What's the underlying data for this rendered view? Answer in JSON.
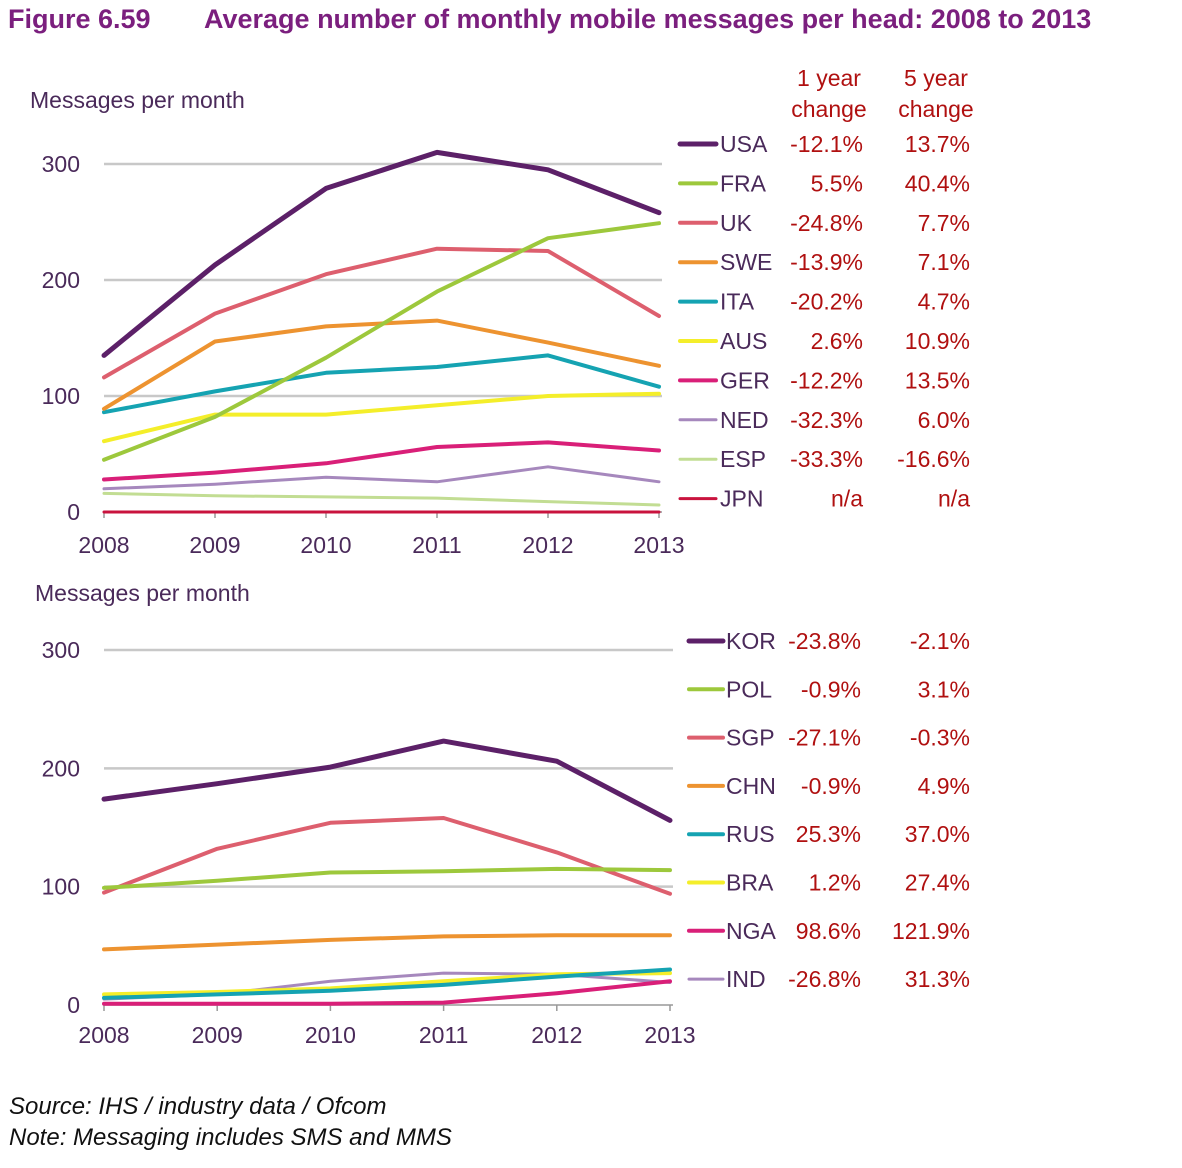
{
  "figure": {
    "number": "Figure 6.59",
    "title": "Average number of monthly mobile messages per head: 2008 to 2013",
    "source": "Source: IHS / industry data / Ofcom",
    "note": "Note: Messaging includes SMS and MMS"
  },
  "colors": {
    "title": "#7b1f7e",
    "axis_text": "#4a2a5a",
    "change_text": "#b01010",
    "grid": "#c8c8c8"
  },
  "chart_data": [
    {
      "type": "line",
      "ylabel": "Messages per month",
      "x": [
        2008,
        2009,
        2010,
        2011,
        2012,
        2013
      ],
      "ylim": [
        0,
        300
      ],
      "yticks": [
        0,
        100,
        200,
        300
      ],
      "grid": true,
      "legend_position": "right",
      "legend_headers": {
        "one_year": "1 year change",
        "five_year": "5 year change"
      },
      "series": [
        {
          "name": "USA",
          "color": "#5c2068",
          "one_year": "-12.1%",
          "five_year": "13.7%",
          "values": [
            135,
            213,
            279,
            310,
            295,
            258
          ]
        },
        {
          "name": "FRA",
          "color": "#9dc83c",
          "one_year": "5.5%",
          "five_year": "40.4%",
          "values": [
            45,
            82,
            133,
            190,
            236,
            249
          ]
        },
        {
          "name": "UK",
          "color": "#dd5f6e",
          "one_year": "-24.8%",
          "five_year": "7.7%",
          "values": [
            116,
            171,
            205,
            227,
            225,
            169
          ]
        },
        {
          "name": "SWE",
          "color": "#ed9330",
          "one_year": "-13.9%",
          "five_year": "7.1%",
          "values": [
            89,
            147,
            160,
            165,
            146,
            126
          ]
        },
        {
          "name": "ITA",
          "color": "#15a3b2",
          "one_year": "-20.2%",
          "five_year": "4.7%",
          "values": [
            86,
            104,
            120,
            125,
            135,
            108
          ]
        },
        {
          "name": "AUS",
          "color": "#f4ee2a",
          "one_year": "2.6%",
          "five_year": "10.9%",
          "values": [
            61,
            84,
            84,
            92,
            100,
            102
          ]
        },
        {
          "name": "GER",
          "color": "#d91f78",
          "one_year": "-12.2%",
          "five_year": "13.5%",
          "values": [
            28,
            34,
            42,
            56,
            60,
            53
          ]
        },
        {
          "name": "NED",
          "color": "#a688bd",
          "one_year": "-32.3%",
          "five_year": "6.0%",
          "values": [
            20,
            24,
            30,
            26,
            39,
            26
          ]
        },
        {
          "name": "ESP",
          "color": "#c2dd93",
          "one_year": "-33.3%",
          "five_year": "-16.6%",
          "values": [
            16,
            14,
            13,
            12,
            9,
            6
          ]
        },
        {
          "name": "JPN",
          "color": "#c9133e",
          "one_year": "n/a",
          "five_year": "n/a",
          "values": [
            0,
            0,
            0,
            0,
            0,
            0
          ]
        }
      ]
    },
    {
      "type": "line",
      "ylabel": "Messages per month",
      "x": [
        2008,
        2009,
        2010,
        2011,
        2012,
        2013
      ],
      "ylim": [
        0,
        300
      ],
      "yticks": [
        0,
        100,
        200,
        300
      ],
      "grid": true,
      "legend_position": "right",
      "series": [
        {
          "name": "KOR",
          "color": "#5c2068",
          "one_year": "-23.8%",
          "five_year": "-2.1%",
          "values": [
            174,
            187,
            201,
            223,
            206,
            156
          ]
        },
        {
          "name": "POL",
          "color": "#9dc83c",
          "one_year": "-0.9%",
          "five_year": "3.1%",
          "values": [
            99,
            105,
            112,
            113,
            115,
            114
          ]
        },
        {
          "name": "SGP",
          "color": "#dd5f6e",
          "one_year": "-27.1%",
          "five_year": "-0.3%",
          "values": [
            95,
            132,
            154,
            158,
            129,
            94
          ]
        },
        {
          "name": "CHN",
          "color": "#ed9330",
          "one_year": "-0.9%",
          "five_year": "4.9%",
          "values": [
            47,
            51,
            55,
            58,
            59,
            59
          ]
        },
        {
          "name": "RUS",
          "color": "#15a3b2",
          "one_year": "25.3%",
          "five_year": "37.0%",
          "values": [
            6,
            9,
            12,
            17,
            24,
            30
          ]
        },
        {
          "name": "BRA",
          "color": "#f4ee2a",
          "one_year": "1.2%",
          "five_year": "27.4%",
          "values": [
            9,
            11,
            14,
            20,
            26,
            27
          ]
        },
        {
          "name": "NGA",
          "color": "#d91f78",
          "one_year": "98.6%",
          "five_year": "121.9%",
          "values": [
            1,
            1,
            1,
            2,
            10,
            20
          ]
        },
        {
          "name": "IND",
          "color": "#a688bd",
          "one_year": "-26.8%",
          "five_year": "31.3%",
          "values": [
            5,
            9,
            20,
            27,
            26,
            19
          ]
        }
      ]
    }
  ]
}
